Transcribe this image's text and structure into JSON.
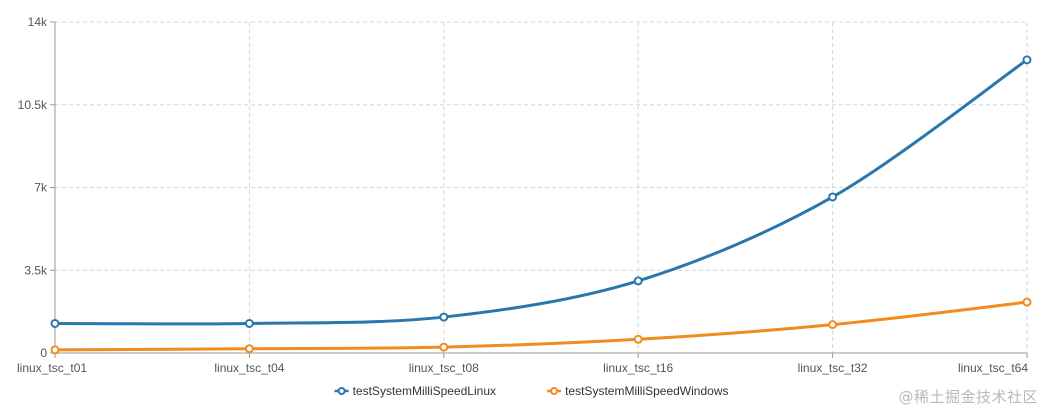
{
  "chart_data": {
    "type": "line",
    "categories": [
      "linux_tsc_t01",
      "linux_tsc_t04",
      "linux_tsc_t08",
      "linux_tsc_t16",
      "linux_tsc_t32",
      "linux_tsc_t64"
    ],
    "series": [
      {
        "name": "testSystemMilliSpeedLinux",
        "color": "#2a77ad",
        "values": [
          1250,
          1250,
          1520,
          3050,
          6600,
          12400
        ]
      },
      {
        "name": "testSystemMilliSpeedWindows",
        "color": "#f28a1c",
        "values": [
          130,
          180,
          250,
          580,
          1200,
          2150
        ]
      }
    ],
    "ylim": [
      0,
      14000
    ],
    "yticks": [
      0,
      3500,
      7000,
      10500,
      14000
    ],
    "ytick_labels": [
      "0",
      "3.5k",
      "7k",
      "10.5k",
      "14k"
    ],
    "grid": true,
    "legend_position": "bottom-center",
    "title": "",
    "xlabel": "",
    "ylabel": ""
  },
  "watermark": "@稀土掘金技术社区"
}
